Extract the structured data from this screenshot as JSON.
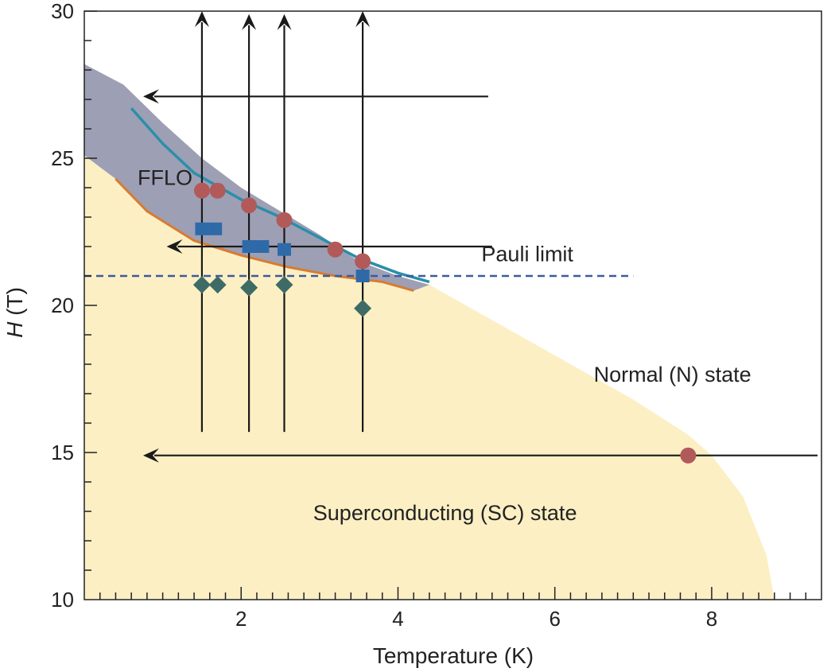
{
  "chart_data": {
    "type": "scatter",
    "xlabel": "Temperature (K)",
    "ylabel_italic": "H",
    "ylabel_unit": " (T)",
    "xlim": [
      0,
      9.4
    ],
    "ylim": [
      10,
      30
    ],
    "x_ticks": [
      2,
      4,
      6,
      8
    ],
    "y_ticks": [
      10,
      15,
      20,
      25,
      30
    ],
    "x_minor_step": 0.2,
    "y_minor_step": 1,
    "grid": false,
    "colors": {
      "sc_fill": "#fcefc4",
      "fflo_fill": "#9d9fb5",
      "upper_line": "#2a8fa8",
      "lower_line": "#d97b30",
      "pauli_line": "#3b5aa0",
      "circle": "#b25a5a",
      "square": "#2f6aa8",
      "diamond": "#3f6b66",
      "arrow": "#1a1a1a"
    },
    "annotations": [
      {
        "id": "fflo",
        "text": "FFLO",
        "x": 0.68,
        "y": 24.1
      },
      {
        "id": "pauli",
        "text": "Pauli limit",
        "x": 5.65,
        "y": 21.5
      },
      {
        "id": "normal",
        "text": "Normal (N) state",
        "x": 7.5,
        "y": 17.4
      },
      {
        "id": "sc",
        "text": "Superconducting (SC) state",
        "x": 4.6,
        "y": 12.7
      }
    ],
    "sc_boundary": [
      [
        0,
        28.2
      ],
      [
        0.5,
        27.5
      ],
      [
        1.0,
        26.2
      ],
      [
        1.5,
        25.0
      ],
      [
        2.0,
        24.0
      ],
      [
        2.5,
        23.2
      ],
      [
        3.0,
        22.4
      ],
      [
        3.5,
        21.5
      ],
      [
        4.0,
        21.0
      ],
      [
        4.4,
        20.7
      ],
      [
        5.0,
        19.8
      ],
      [
        6.0,
        18.3
      ],
      [
        7.0,
        16.8
      ],
      [
        7.7,
        15.6
      ],
      [
        8.0,
        14.9
      ],
      [
        8.4,
        13.5
      ],
      [
        8.7,
        11.5
      ],
      [
        8.8,
        10.0
      ]
    ],
    "fflo_lower": [
      [
        0,
        25.1
      ],
      [
        0.4,
        24.3
      ],
      [
        0.8,
        23.2
      ],
      [
        1.4,
        22.2
      ],
      [
        2.0,
        21.7
      ],
      [
        2.6,
        21.3
      ],
      [
        3.2,
        21.0
      ],
      [
        3.8,
        20.8
      ],
      [
        4.2,
        20.5
      ]
    ],
    "fflo_upper_line": [
      [
        0.6,
        26.7
      ],
      [
        1.0,
        25.5
      ],
      [
        1.4,
        24.5
      ],
      [
        2.0,
        23.6
      ],
      [
        2.5,
        23.0
      ],
      [
        3.0,
        22.3
      ],
      [
        3.5,
        21.6
      ],
      [
        4.0,
        21.1
      ],
      [
        4.4,
        20.8
      ]
    ],
    "pauli_limit": {
      "value": 21.0,
      "x_range": [
        0,
        7.0
      ]
    },
    "series": [
      {
        "marker": "circle",
        "points": [
          [
            1.5,
            23.9
          ],
          [
            1.7,
            23.9
          ],
          [
            2.1,
            23.4
          ],
          [
            2.55,
            22.9
          ],
          [
            3.2,
            21.9
          ],
          [
            3.55,
            21.5
          ],
          [
            7.7,
            14.9
          ]
        ]
      },
      {
        "marker": "square",
        "points": [
          [
            1.5,
            22.6
          ],
          [
            1.67,
            22.6
          ],
          [
            2.1,
            22.0
          ],
          [
            2.27,
            22.0
          ],
          [
            2.55,
            21.9
          ],
          [
            3.55,
            21.0
          ]
        ]
      },
      {
        "marker": "diamond",
        "points": [
          [
            1.5,
            20.7
          ],
          [
            1.7,
            20.7
          ],
          [
            2.1,
            20.6
          ],
          [
            2.55,
            20.7
          ],
          [
            3.55,
            19.9
          ]
        ]
      }
    ],
    "vertical_arrows": [
      {
        "x": 1.5,
        "y_start": 15.7,
        "y_end": 30.0
      },
      {
        "x": 2.1,
        "y_start": 15.7,
        "y_end": 29.9
      },
      {
        "x": 2.55,
        "y_start": 15.7,
        "y_end": 29.9
      },
      {
        "x": 3.55,
        "y_start": 15.7,
        "y_end": 30.0
      }
    ],
    "horizontal_arrows": [
      {
        "y": 27.1,
        "x_start": 5.15,
        "x_end": 0.75
      },
      {
        "y": 22.0,
        "x_start": 5.2,
        "x_end": 1.05
      },
      {
        "y": 14.9,
        "x_start": 9.35,
        "x_end": 0.75
      }
    ]
  }
}
